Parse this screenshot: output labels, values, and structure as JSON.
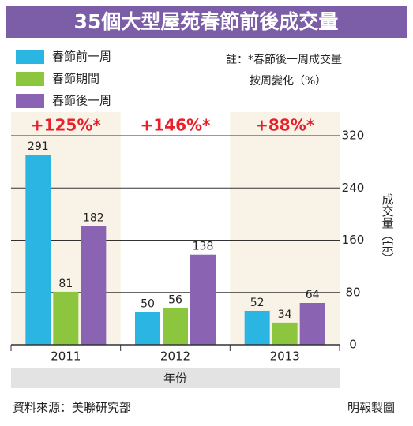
{
  "chart_data": {
    "type": "bar",
    "title": "35個大型屋苑春節前後成交量",
    "note": [
      "註：*春節後一周成交量",
      "按周變化（%）"
    ],
    "annotations": [
      "+125%*",
      "+146%*",
      "+88%*"
    ],
    "categories": [
      "2011",
      "2012",
      "2013"
    ],
    "series": [
      {
        "name": "春節前一周",
        "color": "#2bb5e3",
        "values": [
          291,
          50,
          52
        ]
      },
      {
        "name": "春節期間",
        "color": "#8cc63f",
        "values": [
          81,
          56,
          34
        ]
      },
      {
        "name": "春節後一周",
        "color": "#8a63b3",
        "values": [
          182,
          138,
          64
        ]
      }
    ],
    "ylim": [
      0,
      320
    ],
    "yticks": [
      0,
      80,
      160,
      240,
      320
    ],
    "ylabel": "成交量（宗）",
    "xlabel": "年份",
    "source": "資料來源：美聯研究部",
    "credit": "明報製圖",
    "grid": true
  }
}
